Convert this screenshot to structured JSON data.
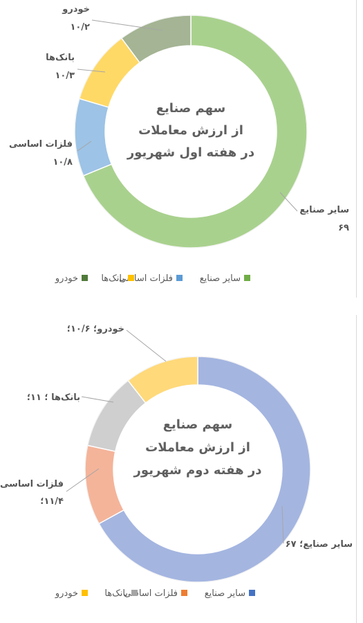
{
  "chart_data": [
    {
      "type": "pie",
      "style": "doughnut",
      "title_lines": [
        "سهم صنایع",
        "از ارزش معاملات",
        "در هفته اول شهریور"
      ],
      "categories": [
        "سایر صنایع",
        "فلزات اساسی",
        "بانک‌ها",
        "خودرو"
      ],
      "values": [
        69,
        10.8,
        10.3,
        10.2
      ],
      "colors": [
        "#a9d18e",
        "#9dc3e6",
        "#ffd966",
        "#a4b494"
      ],
      "data_labels": [
        {
          "lines": [
            "سایر صنایع",
            "۶۹"
          ]
        },
        {
          "lines": [
            "فلزات اساسی",
            "۱۰/۸"
          ]
        },
        {
          "lines": [
            "بانک‌ها",
            "۱۰/۳"
          ]
        },
        {
          "lines": [
            "خودرو",
            "۱۰/۲"
          ]
        }
      ],
      "legend": [
        "سایر صنایع",
        "فلزات اساسی",
        "بانک‌ها",
        "خودرو"
      ],
      "legend_colors": [
        "#70ad47",
        "#5b9bd5",
        "#ffc000",
        "#507a3a"
      ],
      "legend_position": "bottom"
    },
    {
      "type": "pie",
      "style": "doughnut",
      "title_lines": [
        "سهم صنایع",
        "از ارزش معاملات",
        "در هفته دوم شهریور"
      ],
      "categories": [
        "سایر صنایع",
        "فلزات اساسی",
        "بانک‌ها",
        "خودرو"
      ],
      "values": [
        67,
        11.4,
        11,
        10.6
      ],
      "colors": [
        "#a4b5e0",
        "#f4b49a",
        "#cfcfcf",
        "#ffd97a"
      ],
      "data_labels": [
        {
          "lines": [
            "سایر صنایع؛ ۶۷"
          ]
        },
        {
          "lines": [
            "فلزات اساسی؛",
            "۱۱/۴؛"
          ]
        },
        {
          "lines": [
            "بانک‌ها ؛ ۱۱؛"
          ]
        },
        {
          "lines": [
            "خودرو؛ ۱۰/۶؛"
          ]
        }
      ],
      "legend": [
        "سایر صنایع",
        "فلزات اساسی",
        "بانک‌ها",
        "خودرو"
      ],
      "legend_colors": [
        "#4472c4",
        "#ed7d31",
        "#a5a5a5",
        "#ffc000"
      ],
      "legend_position": "bottom"
    }
  ]
}
